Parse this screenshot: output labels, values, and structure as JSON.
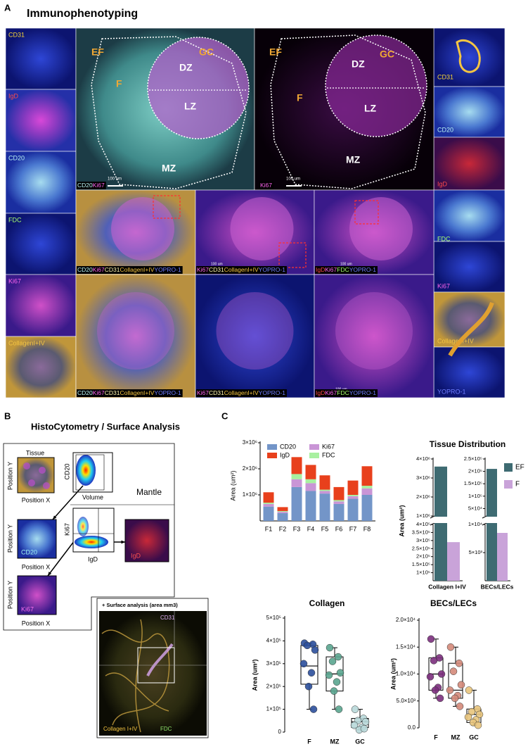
{
  "figure": {
    "panel_labels": [
      "A",
      "B",
      "C"
    ],
    "a": {
      "title": "Immunophenotyping",
      "left_strip": [
        {
          "text": "CD31",
          "color": "#f5d33a"
        },
        {
          "text": "IgD",
          "color": "#ff4a4a"
        },
        {
          "text": "CD20",
          "color": "#b8f4f4"
        },
        {
          "text": "FDC",
          "color": "#a6ff6e"
        },
        {
          "text": "Ki67",
          "color": "#ff63f0"
        },
        {
          "text": "CollagenI+IV",
          "color": "#f5c542"
        }
      ],
      "right_strip": [
        {
          "text": "CD31",
          "color": "#f5d33a"
        },
        {
          "text": "CD20",
          "color": "#b8f4f4"
        },
        {
          "text": "IgD",
          "color": "#ff4a4a"
        },
        {
          "text": "FDC",
          "color": "#a6ff6e"
        },
        {
          "text": "Ki67",
          "color": "#ff63f0"
        },
        {
          "text": "CollagenI+IV",
          "color": "#f5c542"
        },
        {
          "text": "YOPRO-1",
          "color": "#6f7dff"
        }
      ],
      "zones": [
        {
          "text": "EF",
          "color": "#f0a834"
        },
        {
          "text": "GC",
          "color": "#f0a834"
        },
        {
          "text": "DZ",
          "color": "#ffffff"
        },
        {
          "text": "F",
          "color": "#f0a834"
        },
        {
          "text": "LZ",
          "color": "#ffffff"
        },
        {
          "text": "MZ",
          "color": "#ffffff"
        }
      ],
      "scale_bar": "100 um",
      "captions": [
        [
          {
            "text": "CD20",
            "color": "#b8f4f4"
          },
          {
            "text": "Ki67",
            "color": "#ff63f0"
          }
        ],
        [
          {
            "text": "Ki67",
            "color": "#ff63f0"
          }
        ],
        [
          {
            "text": "CD20",
            "color": "#b8f4f4"
          },
          {
            "text": "Ki67",
            "color": "#ff63f0"
          },
          {
            "text": "CD31",
            "color": "#fff6b0"
          },
          {
            "text": "CollagenI+IV",
            "color": "#f5c542"
          },
          {
            "text": "YOPRO-1",
            "color": "#6f7dff"
          }
        ],
        [
          {
            "text": "Ki67",
            "color": "#ff63f0"
          },
          {
            "text": "CD31",
            "color": "#fff6b0"
          },
          {
            "text": "CollagenI+IV",
            "color": "#f5c542"
          },
          {
            "text": "YOPRO-1",
            "color": "#6f7dff"
          }
        ],
        [
          {
            "text": "IgD",
            "color": "#ff4a4a"
          },
          {
            "text": "Ki67",
            "color": "#ff63f0"
          },
          {
            "text": "FDC",
            "color": "#a6ff6e"
          },
          {
            "text": "YOPRO-1",
            "color": "#6f7dff"
          }
        ]
      ]
    },
    "b": {
      "title": "HistoCytometry / Surface Analysis",
      "tissue": "Tissue",
      "position_y": "Position Y",
      "position_x": "Position X",
      "cd20_axis": "CD20",
      "volume": "Volume",
      "mantle": "Mantle",
      "ki67_axis": "Ki67",
      "igd_axis": "IgD",
      "image_labels": [
        {
          "text": "CD20",
          "color": "#9ff0f0"
        },
        {
          "text": "IgD",
          "color": "#ff5050"
        },
        {
          "text": "Ki67",
          "color": "#ff70f0"
        }
      ],
      "surface_title": "+ Surface analysis (area mm3)",
      "surface_labels": [
        {
          "text": "CD31",
          "color": "#d9a8f0"
        },
        {
          "text": "Collagen I+IV",
          "color": "#f5c542"
        },
        {
          "text": "FDC",
          "color": "#8fe36a"
        }
      ]
    }
  },
  "chart_data": [
    {
      "type": "stacked_bar",
      "y_label": "Area (um²)",
      "categories": [
        "F1",
        "F2",
        "F3",
        "F4",
        "F5",
        "F6",
        "F7",
        "F8"
      ],
      "series": [
        {
          "name": "CD20",
          "color": "#7395c8",
          "values": [
            550000,
            300000,
            1300000,
            1150000,
            1050000,
            650000,
            850000,
            1000000
          ]
        },
        {
          "name": "Ki67",
          "color": "#c995d6",
          "values": [
            100000,
            50000,
            300000,
            300000,
            100000,
            100000,
            100000,
            250000
          ]
        },
        {
          "name": "FDC",
          "color": "#a8f0a0",
          "values": [
            50000,
            30000,
            200000,
            150000,
            50000,
            50000,
            50000,
            100000
          ]
        },
        {
          "name": "IgD",
          "color": "#e8401c",
          "values": [
            400000,
            150000,
            650000,
            550000,
            550000,
            500000,
            550000,
            750000
          ]
        }
      ],
      "ylim": [
        0,
        3000000
      ],
      "yticks": [
        {
          "value": 1000000,
          "label": "1×10⁶"
        },
        {
          "value": 2000000,
          "label": "2×10⁶"
        },
        {
          "value": 3000000,
          "label": "3×10⁶"
        }
      ]
    },
    {
      "type": "broken_bar",
      "title": "Tissue Distribution",
      "y_label": "Area (um²)",
      "legend": "right",
      "categories": [
        "Collagen I+IV",
        "BECs/LECs"
      ],
      "series": [
        {
          "name": "EF",
          "color": "#3e6b72",
          "values": [
            3600000,
            210000
          ]
        },
        {
          "name": "F",
          "color": "#c9a3d9",
          "values": [
            290000,
            8500
          ]
        }
      ],
      "axes": [
        {
          "ylim": [
            50000,
            400000
          ],
          "yticks": [
            {
              "value": 100000,
              "label": "1×10⁵"
            },
            {
              "value": 150000,
              "label": "1.5×10⁵"
            },
            {
              "value": 200000,
              "label": "2×10⁵"
            },
            {
              "value": 250000,
              "label": "2.5×10⁵"
            },
            {
              "value": 300000,
              "label": "3×10⁵"
            },
            {
              "value": 350000,
              "label": "3.5×10⁵"
            },
            {
              "value": 400000,
              "label": "4×10⁵"
            }
          ],
          "upper_ylim": [
            1000000,
            4000000
          ],
          "upper_yticks": [
            {
              "value": 1000000,
              "label": "1×10⁶"
            },
            {
              "value": 2000000,
              "label": "2×10⁶"
            },
            {
              "value": 3000000,
              "label": "3×10⁶"
            },
            {
              "value": 4000000,
              "label": "4×10⁶"
            }
          ]
        },
        {
          "ylim": [
            0,
            10000
          ],
          "yticks": [
            {
              "value": 5000,
              "label": "5×10³"
            },
            {
              "value": 10000,
              "label": "1×10⁴"
            }
          ],
          "upper_ylim": [
            20000,
            250000
          ],
          "upper_yticks": [
            {
              "value": 50000,
              "label": "5×10⁴"
            },
            {
              "value": 100000,
              "label": "1×10⁵"
            },
            {
              "value": 150000,
              "label": "1.5×10⁵"
            },
            {
              "value": 200000,
              "label": "2×10⁵"
            },
            {
              "value": 250000,
              "label": "2.5×10⁵"
            }
          ]
        }
      ]
    },
    {
      "type": "box",
      "title": "Collagen",
      "y_label": "Area (um²)",
      "categories": [
        "F",
        "MZ",
        "GC"
      ],
      "colors": [
        "#2b4f9b",
        "#5aa58f",
        "#b8d8d9"
      ],
      "boxes": [
        {
          "min": 100000,
          "q1": 210000,
          "median": 290000,
          "q3": 380000,
          "max": 390000,
          "points": [
            390000,
            385000,
            380000,
            360000,
            300000,
            260000,
            200000,
            100000
          ]
        },
        {
          "min": 100000,
          "q1": 180000,
          "median": 255000,
          "q3": 330000,
          "max": 370000,
          "points": [
            370000,
            330000,
            310000,
            260000,
            250000,
            220000,
            180000,
            100000
          ]
        },
        {
          "min": 10000,
          "q1": 20000,
          "median": 45000,
          "q3": 60000,
          "max": 100000,
          "points": [
            100000,
            60000,
            50000,
            45000,
            30000,
            20000,
            10000,
            15000
          ]
        }
      ],
      "ylim": [
        0,
        500000
      ],
      "yticks": [
        0,
        {
          "value": 100000,
          "label": "1×10⁵"
        },
        {
          "value": 200000,
          "label": "2×10⁵"
        },
        {
          "value": 300000,
          "label": "3×10⁵"
        },
        {
          "value": 400000,
          "label": "4×10⁵"
        },
        {
          "value": 500000,
          "label": "5×10⁵"
        }
      ]
    },
    {
      "type": "box",
      "title": "BECs/LECs",
      "y_label": "Area (um²)",
      "categories": [
        "F",
        "MZ",
        "GC"
      ],
      "colors": [
        "#7b2f7d",
        "#d48a7a",
        "#e8c47c"
      ],
      "boxes": [
        {
          "min": 5500,
          "q1": 7000,
          "median": 10000,
          "q3": 13000,
          "max": 16500,
          "points": [
            16500,
            13000,
            12500,
            10000,
            9500,
            7500,
            7000,
            5500
          ]
        },
        {
          "min": 4000,
          "q1": 5500,
          "median": 7000,
          "q3": 12000,
          "max": 15000,
          "points": [
            15000,
            12000,
            10500,
            8000,
            7000,
            6000,
            5500,
            4000
          ]
        },
        {
          "min": 500,
          "q1": 1000,
          "median": 2500,
          "q3": 3500,
          "max": 7000,
          "points": [
            7000,
            3500,
            3000,
            2500,
            2000,
            1500,
            1000,
            500
          ]
        }
      ],
      "ylim": [
        0,
        20000
      ],
      "yticks": [
        {
          "value": 0,
          "label": "0.0"
        },
        {
          "value": 5000,
          "label": "5.0×10³"
        },
        {
          "value": 10000,
          "label": "1.0×10⁴"
        },
        {
          "value": 15000,
          "label": "1.5×10⁴"
        },
        {
          "value": 20000,
          "label": "2.0×10⁴"
        }
      ]
    }
  ]
}
